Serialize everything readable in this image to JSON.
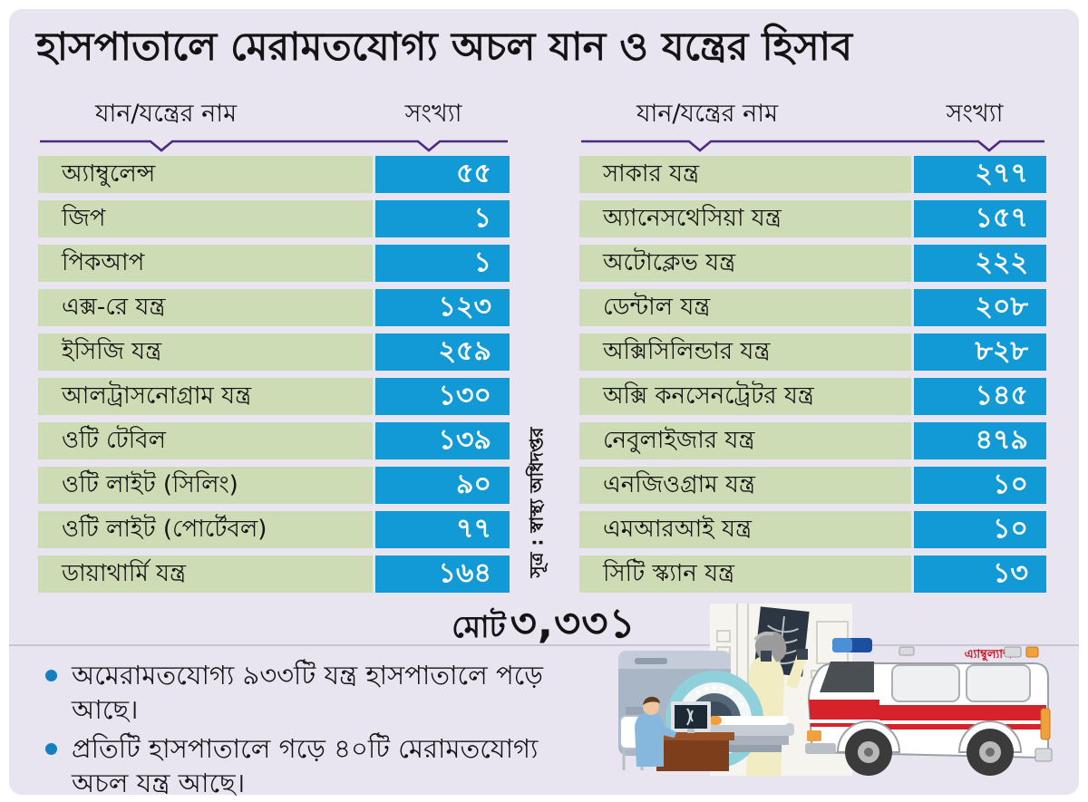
{
  "title": "হাসপাতালে মেরামতযোগ্য অচল যান ও যন্ত্রের হিসাব",
  "columns": {
    "name": "যান/যন্ত্রের নাম",
    "count": "সংখ্যা"
  },
  "left_table": {
    "rows": [
      {
        "name": "অ্যাম্বুলেন্স",
        "count": "৫৫"
      },
      {
        "name": "জিপ",
        "count": "১"
      },
      {
        "name": "পিকআপ",
        "count": "১"
      },
      {
        "name": "এক্স-রে যন্ত্র",
        "count": "১২৩"
      },
      {
        "name": "ইসিজি যন্ত্র",
        "count": "২৫৯"
      },
      {
        "name": "আলট্রাসনোগ্রাম যন্ত্র",
        "count": "১৩০"
      },
      {
        "name": "ওটি টেবিল",
        "count": "১৩৯"
      },
      {
        "name": "ওটি লাইট (সিলিং)",
        "count": "৯০"
      },
      {
        "name": "ওটি লাইট (পোর্টেবল)",
        "count": "৭৭"
      },
      {
        "name": "ডায়াথার্মি যন্ত্র",
        "count": "১৬৪"
      }
    ]
  },
  "right_table": {
    "rows": [
      {
        "name": "সাকার যন্ত্র",
        "count": "২৭৭"
      },
      {
        "name": "অ্যানেসথেসিয়া যন্ত্র",
        "count": "১৫৭"
      },
      {
        "name": "অটোক্লেভ যন্ত্র",
        "count": "২২২"
      },
      {
        "name": "ডেন্টাল যন্ত্র",
        "count": "২০৮"
      },
      {
        "name": "অক্সিসিলিন্ডার যন্ত্র",
        "count": "৮২৮"
      },
      {
        "name": "অক্সি কনসেনট্রেটর যন্ত্র",
        "count": "১৪৫"
      },
      {
        "name": "নেবুলাইজার যন্ত্র",
        "count": "৪৭৯"
      },
      {
        "name": "এনজিওগ্রাম যন্ত্র",
        "count": "১০"
      },
      {
        "name": "এমআরআই যন্ত্র",
        "count": "১০"
      },
      {
        "name": "সিটি স্ক্যান যন্ত্র",
        "count": "১৩"
      }
    ]
  },
  "total": {
    "label": "মোট",
    "value": "৩,৩৩১"
  },
  "source": "সূত্র : স্বাস্থ্য অধিদপ্তর",
  "notes": [
    "অমেরামতযোগ্য ৯৩৩টি যন্ত্র হাসপাতালে পড়ে আছে।",
    "প্রতিটি হাসপাতালে গড়ে ৪০টি মেরামতযোগ্য অচল যন্ত্র আছে।"
  ],
  "ambulance_label": "এ্যাম্বুল্যান্স",
  "colors": {
    "panel_bg": "#e8e4f0",
    "row_green": "#cddcb4",
    "count_blue": "#129ad7",
    "header_rule_purple": "#4b2a7f",
    "bullet_blue": "#157fc1",
    "ambulance_red": "#d6222a",
    "text_black": "#141414"
  },
  "chart_data": {
    "type": "table",
    "title": "হাসপাতালে মেরামতযোগ্য অচল যান ও যন্ত্রের হিসাব",
    "columns": [
      "যান/যন্ত্রের নাম",
      "সংখ্যা"
    ],
    "tables": [
      {
        "categories": [
          "অ্যাম্বুলেন্স",
          "জিপ",
          "পিকআপ",
          "এক্স-রে যন্ত্র",
          "ইসিজি যন্ত্র",
          "আলট্রাসনোগ্রাম যন্ত্র",
          "ওটি টেবিল",
          "ওটি লাইট (সিলিং)",
          "ওটি লাইট (পোর্টেবল)",
          "ডায়াথার্মি যন্ত্র"
        ],
        "values": [
          55,
          1,
          1,
          123,
          259,
          130,
          139,
          90,
          77,
          164
        ]
      },
      {
        "categories": [
          "সাকার যন্ত্র",
          "অ্যানেসথেসিয়া যন্ত্র",
          "অটোক্লেভ যন্ত্র",
          "ডেন্টাল যন্ত্র",
          "অক্সিসিলিন্ডার যন্ত্র",
          "অক্সি কনসেনট্রেটর যন্ত্র",
          "নেবুলাইজার যন্ত্র",
          "এনজিওগ্রাম যন্ত্র",
          "এমআরআই যন্ত্র",
          "সিটি স্ক্যান যন্ত্র"
        ],
        "values": [
          277,
          157,
          222,
          208,
          828,
          145,
          479,
          10,
          10,
          13
        ]
      }
    ],
    "total": 3331,
    "source": "সূত্র : স্বাস্থ্য অধিদপ্তর",
    "annotations": [
      "অমেরামতযোগ্য ৯৩৩টি যন্ত্র হাসপাতালে পড়ে আছে।",
      "প্রতিটি হাসপাতালে গড়ে ৪০টি মেরামতযোগ্য অচল যন্ত্র আছে।"
    ]
  }
}
